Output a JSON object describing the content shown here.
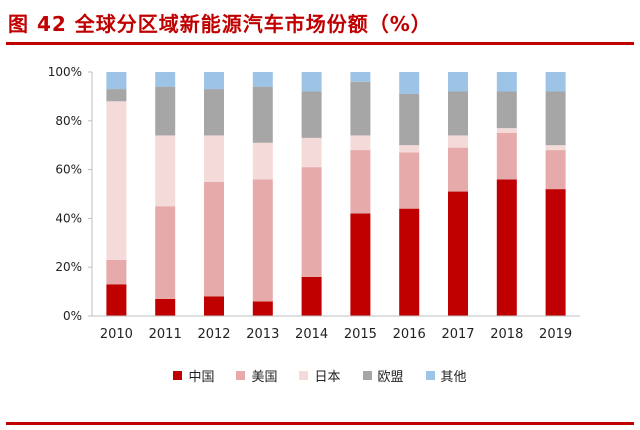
{
  "header": {
    "title": "图 42 全球分区域新能源汽车市场份额（%）"
  },
  "chart_data": {
    "type": "bar",
    "stacked": true,
    "title": "",
    "xlabel": "",
    "ylabel": "",
    "ylim": [
      0,
      100
    ],
    "y_ticks": [
      "0%",
      "20%",
      "40%",
      "60%",
      "80%",
      "100%"
    ],
    "grid": false,
    "legend_position": "bottom",
    "categories": [
      "2010",
      "2011",
      "2012",
      "2013",
      "2014",
      "2015",
      "2016",
      "2017",
      "2018",
      "2019"
    ],
    "series": [
      {
        "name": "中国",
        "color": "#c00000",
        "values": [
          13,
          7,
          8,
          6,
          16,
          42,
          44,
          51,
          56,
          52
        ]
      },
      {
        "name": "美国",
        "color": "#e6aaaa",
        "values": [
          10,
          38,
          47,
          50,
          45,
          26,
          23,
          18,
          19,
          16
        ]
      },
      {
        "name": "日本",
        "color": "#f5dada",
        "values": [
          65,
          29,
          19,
          15,
          12,
          6,
          3,
          5,
          2,
          2
        ]
      },
      {
        "name": "欧盟",
        "color": "#a6a6a6",
        "values": [
          5,
          20,
          19,
          23,
          19,
          22,
          21,
          18,
          15,
          22
        ]
      },
      {
        "name": "其他",
        "color": "#9dc3e6",
        "values": [
          7,
          6,
          7,
          6,
          8,
          4,
          9,
          8,
          8,
          8
        ]
      }
    ]
  }
}
